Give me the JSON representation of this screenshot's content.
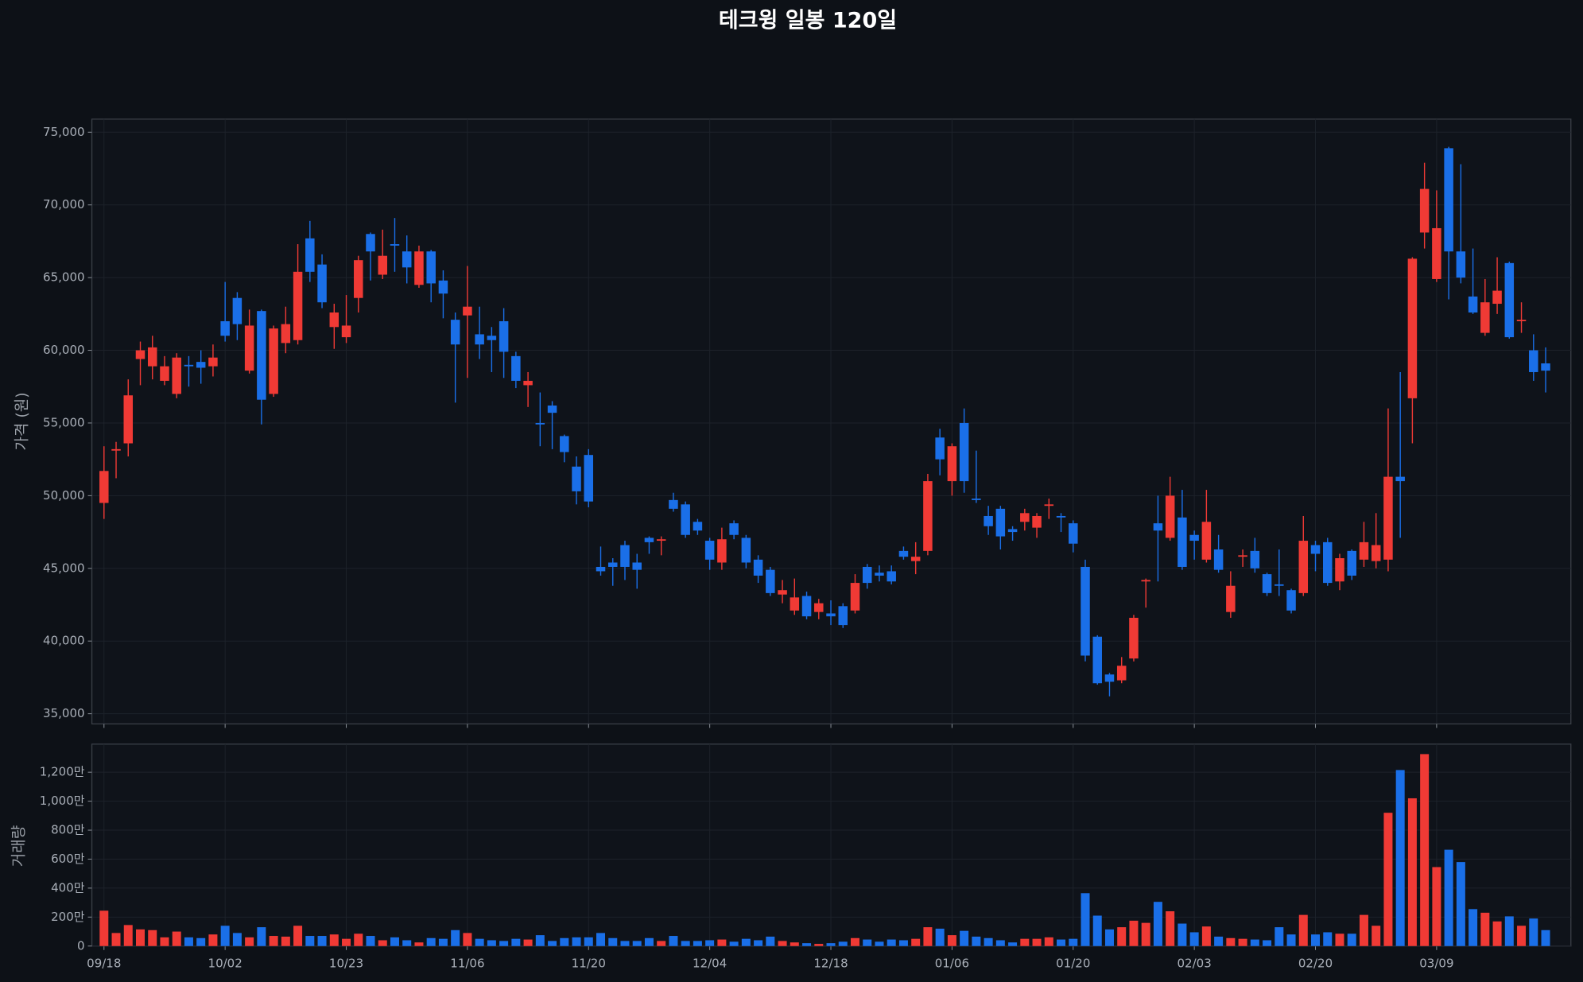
{
  "chart_data": [
    {
      "type": "candlestick",
      "title": "테크윙 일봉 120일",
      "ylabel": "가격 (원)",
      "colors": {
        "up": "#f03a35",
        "down": "#1a6fe8"
      },
      "grid": true,
      "ylim": [
        34300,
        75900
      ],
      "yticks": [
        {
          "value": 35000,
          "label": "35,000"
        },
        {
          "value": 40000,
          "label": "40,000"
        },
        {
          "value": 45000,
          "label": "45,000"
        },
        {
          "value": 50000,
          "label": "50,000"
        },
        {
          "value": 55000,
          "label": "55,000"
        },
        {
          "value": 60000,
          "label": "60,000"
        },
        {
          "value": 65000,
          "label": "65,000"
        },
        {
          "value": 70000,
          "label": "70,000"
        },
        {
          "value": 75000,
          "label": "75,000"
        }
      ],
      "open": [
        49500,
        53100,
        53600,
        59400,
        58900,
        57900,
        57000,
        59000,
        59200,
        58900,
        62000,
        63600,
        58600,
        62700,
        57000,
        60500,
        60700,
        67700,
        65900,
        61600,
        60900,
        63600,
        68000,
        65200,
        67300,
        66800,
        64500,
        66800,
        64800,
        62100,
        62400,
        61100,
        61000,
        62000,
        59600,
        57600,
        55000,
        56200,
        54100,
        52000,
        52800,
        45100,
        45400,
        46600,
        45400,
        47100,
        46900,
        49700,
        49400,
        48200,
        46900,
        45400,
        48100,
        47100,
        45600,
        44900,
        43200,
        42100,
        43100,
        42000,
        41900,
        42400,
        42100,
        45100,
        44700,
        44800,
        46200,
        45500,
        46200,
        54000,
        51000,
        55000,
        49800,
        48600,
        49100,
        47700,
        48200,
        47800,
        49300,
        48600,
        48100,
        45100,
        40300,
        37700,
        37300,
        38800,
        44100,
        48100,
        47100,
        48500,
        47300,
        45600,
        46300,
        42000,
        45800,
        46200,
        44600,
        43900,
        43500,
        43300,
        46600,
        46800,
        44100,
        46200,
        45600,
        45500,
        45600,
        51300,
        56700,
        68100,
        64900,
        73900,
        66800,
        63700,
        61200,
        63200,
        66000,
        62000,
        60000,
        59100
      ],
      "high": [
        53400,
        53700,
        58000,
        60600,
        61000,
        59600,
        59800,
        59600,
        60000,
        60400,
        64700,
        64000,
        62800,
        62800,
        61700,
        63000,
        67300,
        68900,
        66600,
        63200,
        63800,
        66500,
        68100,
        68300,
        69100,
        67900,
        67200,
        66900,
        65500,
        62600,
        65800,
        63000,
        61600,
        62900,
        59900,
        58500,
        57100,
        56500,
        54200,
        52700,
        53200,
        46500,
        45700,
        46900,
        46000,
        47200,
        47200,
        50200,
        49600,
        48400,
        47100,
        47800,
        48300,
        47300,
        45900,
        45100,
        44200,
        44300,
        43400,
        42900,
        42800,
        42600,
        44600,
        45300,
        45200,
        45200,
        46500,
        46800,
        51500,
        54600,
        53600,
        56000,
        53100,
        49300,
        49300,
        47900,
        49100,
        48800,
        49800,
        48800,
        48300,
        45600,
        40400,
        37800,
        38900,
        41800,
        44300,
        50000,
        51300,
        50400,
        47600,
        50400,
        47300,
        44800,
        46300,
        47100,
        44700,
        46300,
        43600,
        48600,
        46900,
        47100,
        46000,
        46300,
        48200,
        48800,
        56000,
        58500,
        66400,
        72900,
        71000,
        74000,
        72800,
        67000,
        64900,
        66400,
        66100,
        63300,
        61100,
        60200
      ],
      "low": [
        48400,
        51200,
        52700,
        57600,
        58000,
        57600,
        56700,
        57500,
        57700,
        58200,
        60600,
        60700,
        58400,
        54900,
        56800,
        59800,
        60400,
        64700,
        62900,
        60100,
        60500,
        62600,
        64800,
        64900,
        65400,
        64600,
        64300,
        63300,
        62200,
        56400,
        58100,
        59400,
        58500,
        58100,
        57400,
        56100,
        53400,
        53200,
        52300,
        49400,
        49200,
        44500,
        43800,
        44200,
        43600,
        46000,
        45900,
        48900,
        47100,
        47300,
        44900,
        44900,
        47000,
        45000,
        44000,
        43100,
        42600,
        41800,
        41500,
        41500,
        41100,
        40900,
        41900,
        43600,
        44100,
        43900,
        45600,
        44600,
        45900,
        51400,
        50000,
        50200,
        49500,
        47300,
        46300,
        46900,
        47600,
        47100,
        48400,
        47500,
        46100,
        38600,
        37000,
        36200,
        37100,
        38600,
        42300,
        44100,
        46900,
        44900,
        45600,
        45400,
        44700,
        41600,
        45100,
        44700,
        43100,
        43100,
        41900,
        43100,
        44800,
        43800,
        43500,
        44200,
        45100,
        45000,
        44800,
        47100,
        53600,
        67000,
        64700,
        63500,
        64600,
        62500,
        61000,
        62500,
        60800,
        61200,
        57900,
        57100
      ],
      "close": [
        51700,
        53200,
        56900,
        60000,
        60200,
        58900,
        59500,
        58900,
        58800,
        59500,
        61000,
        61800,
        61700,
        56600,
        61500,
        61800,
        65400,
        65400,
        63300,
        62600,
        61700,
        66200,
        66800,
        66500,
        67200,
        65700,
        66800,
        64600,
        63900,
        60400,
        63000,
        60400,
        60700,
        59900,
        57900,
        57900,
        54900,
        55700,
        53000,
        50300,
        49600,
        44800,
        45100,
        45100,
        44900,
        46800,
        47000,
        49100,
        47300,
        47600,
        45600,
        47000,
        47300,
        45400,
        44500,
        43300,
        43500,
        43000,
        41700,
        42600,
        41700,
        41100,
        44000,
        44000,
        44500,
        44100,
        45800,
        45800,
        51000,
        52500,
        53400,
        51000,
        49700,
        47900,
        47200,
        47500,
        48800,
        48600,
        49400,
        48500,
        46700,
        39000,
        37100,
        37200,
        38300,
        41600,
        44200,
        47600,
        50000,
        45100,
        46900,
        48200,
        44900,
        43800,
        45900,
        45000,
        43300,
        43800,
        42100,
        46900,
        46000,
        44000,
        45700,
        44500,
        46800,
        46600,
        51300,
        51000,
        66300,
        71100,
        68400,
        66800,
        65000,
        62600,
        63300,
        64100,
        60900,
        62100,
        58500,
        58600
      ]
    },
    {
      "type": "bar",
      "ylabel": "거래량",
      "grid": true,
      "categories": [
        "09/18",
        null,
        null,
        null,
        null,
        null,
        null,
        null,
        null,
        null,
        "10/02",
        null,
        null,
        null,
        null,
        null,
        null,
        null,
        null,
        null,
        "10/23",
        null,
        null,
        null,
        null,
        null,
        null,
        null,
        null,
        null,
        "11/06",
        null,
        null,
        null,
        null,
        null,
        null,
        null,
        null,
        null,
        "11/20",
        null,
        null,
        null,
        null,
        null,
        null,
        null,
        null,
        null,
        "12/04",
        null,
        null,
        null,
        null,
        null,
        null,
        null,
        null,
        null,
        "12/18",
        null,
        null,
        null,
        null,
        null,
        null,
        null,
        null,
        null,
        "01/06",
        null,
        null,
        null,
        null,
        null,
        null,
        null,
        null,
        null,
        "01/20",
        null,
        null,
        null,
        null,
        null,
        null,
        null,
        null,
        null,
        "02/03",
        null,
        null,
        null,
        null,
        null,
        null,
        null,
        null,
        null,
        "02/20",
        null,
        null,
        null,
        null,
        null,
        null,
        null,
        null,
        null,
        "03/09",
        null,
        null,
        null,
        null,
        null,
        null,
        null,
        null,
        null
      ],
      "values": [
        244,
        90,
        145,
        115,
        110,
        60,
        100,
        60,
        55,
        80,
        140,
        90,
        60,
        130,
        70,
        65,
        140,
        70,
        70,
        80,
        50,
        85,
        70,
        40,
        60,
        40,
        25,
        55,
        50,
        110,
        90,
        50,
        40,
        35,
        50,
        45,
        75,
        35,
        55,
        60,
        60,
        90,
        55,
        35,
        35,
        55,
        35,
        70,
        35,
        35,
        40,
        45,
        30,
        50,
        40,
        65,
        35,
        25,
        20,
        15,
        20,
        30,
        55,
        45,
        30,
        45,
        40,
        50,
        130,
        120,
        75,
        105,
        65,
        55,
        40,
        25,
        50,
        50,
        60,
        45,
        50,
        365,
        210,
        115,
        130,
        175,
        160,
        305,
        240,
        155,
        95,
        135,
        65,
        55,
        50,
        45,
        40,
        130,
        80,
        215,
        80,
        95,
        85,
        85,
        215,
        140,
        920,
        1215,
        1020,
        1325,
        545,
        665,
        580,
        255,
        230,
        170,
        205,
        140,
        190,
        110
      ],
      "ylim": [
        0,
        1394
      ],
      "yticks": [
        0,
        {
          "value": 200,
          "label": "200만"
        },
        {
          "value": 400,
          "label": "400만"
        },
        {
          "value": 600,
          "label": "600만"
        },
        {
          "value": 800,
          "label": "800만"
        },
        {
          "value": 1000,
          "label": "1,000만"
        },
        {
          "value": 1200,
          "label": "1,200만"
        }
      ]
    }
  ]
}
